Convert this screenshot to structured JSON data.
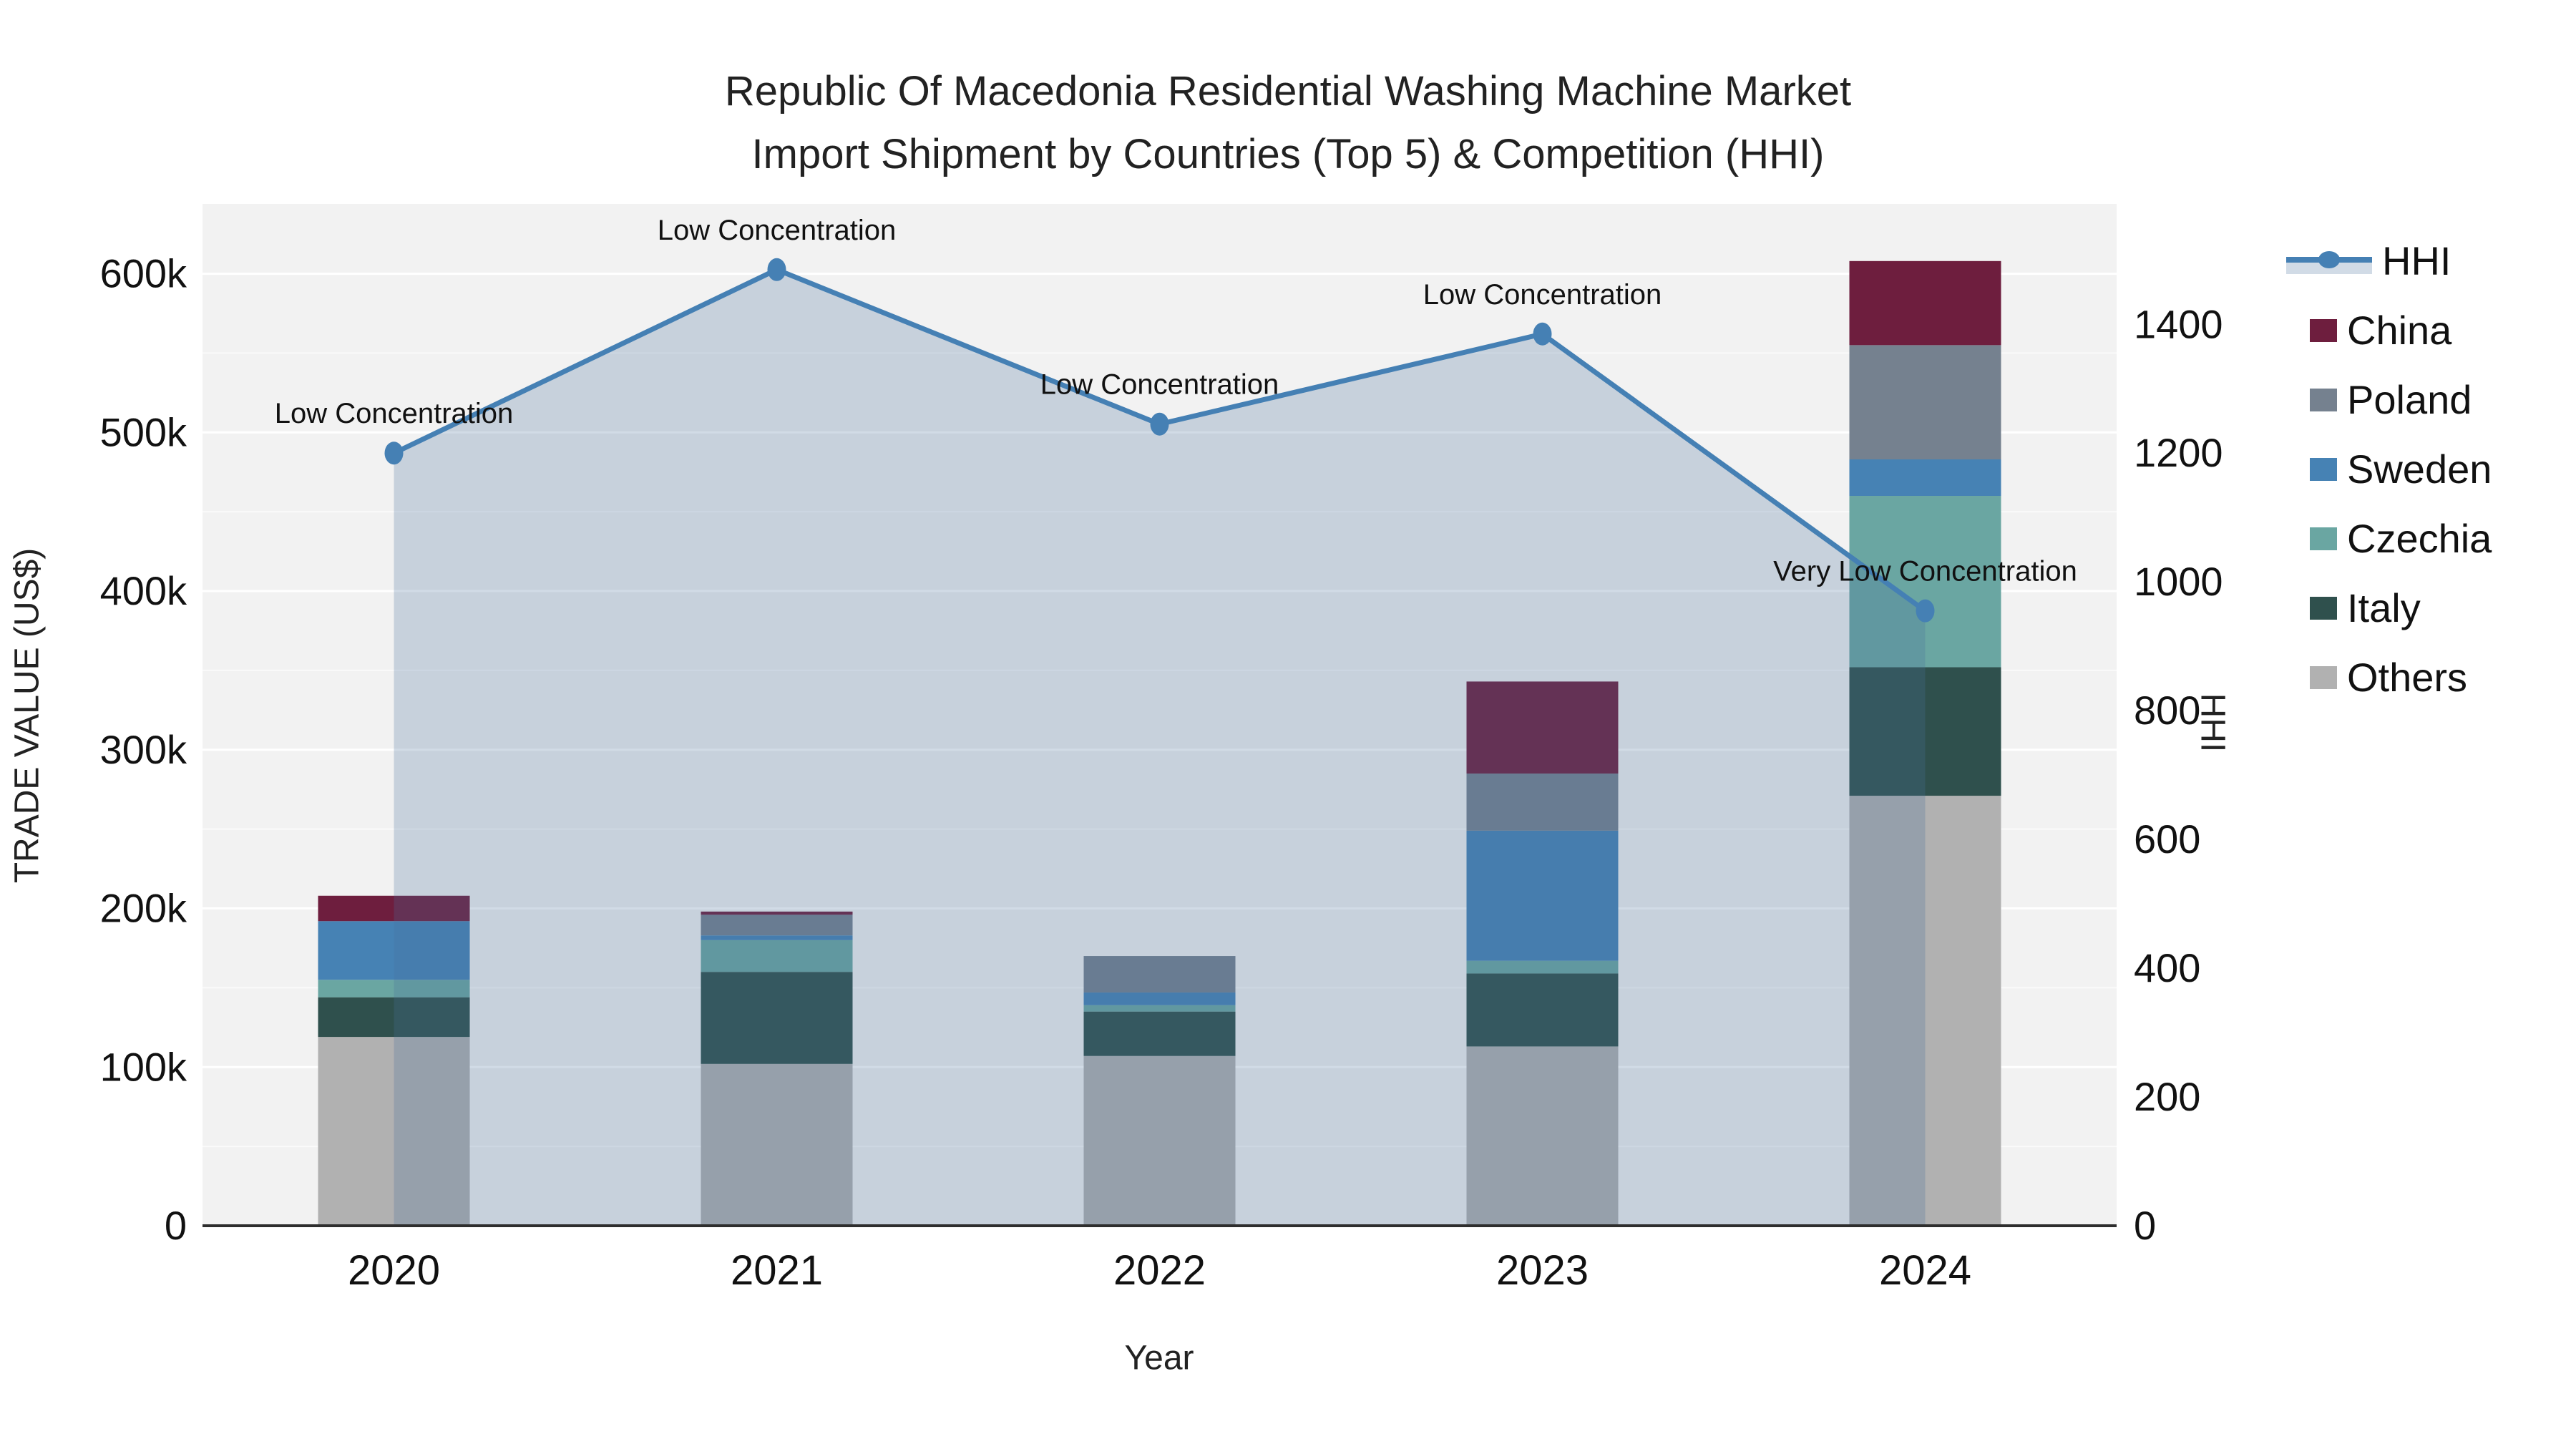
{
  "title": {
    "line1": "Republic Of Macedonia Residential Washing Machine Market",
    "line2": "Import Shipment by Countries (Top 5) & Competition (HHI)"
  },
  "axes": {
    "left_label": "TRADE VALUE (US$)",
    "right_label": "HHI",
    "x_label": "Year",
    "left_ticks": [
      {
        "value": 0,
        "label": "0"
      },
      {
        "value": 100,
        "label": "100k"
      },
      {
        "value": 200,
        "label": "200k"
      },
      {
        "value": 300,
        "label": "300k"
      },
      {
        "value": 400,
        "label": "400k"
      },
      {
        "value": 500,
        "label": "500k"
      },
      {
        "value": 600,
        "label": "600k"
      }
    ],
    "right_ticks": [
      {
        "value": 0,
        "label": "0"
      },
      {
        "value": 200,
        "label": "200"
      },
      {
        "value": 400,
        "label": "400"
      },
      {
        "value": 600,
        "label": "600"
      },
      {
        "value": 800,
        "label": "800"
      },
      {
        "value": 1000,
        "label": "1000"
      },
      {
        "value": 1200,
        "label": "1200"
      },
      {
        "value": 1400,
        "label": "1400"
      }
    ]
  },
  "legend": {
    "items": [
      {
        "label": "HHI",
        "type": "line",
        "color": "#4580b4"
      },
      {
        "label": "China",
        "type": "swatch",
        "color": "#6e1e3e"
      },
      {
        "label": "Poland",
        "type": "swatch",
        "color": "#75818f"
      },
      {
        "label": "Sweden",
        "type": "swatch",
        "color": "#4682b4"
      },
      {
        "label": "Czechia",
        "type": "swatch",
        "color": "#6aa6a2"
      },
      {
        "label": "Italy",
        "type": "swatch",
        "color": "#2f504d"
      },
      {
        "label": "Others",
        "type": "swatch",
        "color": "#b1b1b1"
      }
    ]
  },
  "chart_data": {
    "type": "combo-stacked-bar-plus-area-line",
    "title": "Republic Of Macedonia Residential Washing Machine Market Import Shipment by Countries (Top 5) & Competition (HHI)",
    "xlabel": "Year",
    "ylabel": "TRADE VALUE (US$)",
    "y2label": "HHI",
    "categories": [
      "2020",
      "2021",
      "2022",
      "2023",
      "2024"
    ],
    "units": "thousand US$",
    "ylim": [
      0,
      644
    ],
    "y2lim": [
      0,
      1587
    ],
    "grid": "horizontal, major every 100k, minor every 50k",
    "legend_position": "right",
    "series": [
      {
        "name": "China",
        "color": "#6e1e3e",
        "values": [
          16,
          2,
          0,
          58,
          53
        ]
      },
      {
        "name": "Poland",
        "color": "#75818f",
        "values": [
          0,
          13,
          23,
          36,
          72
        ]
      },
      {
        "name": "Sweden",
        "color": "#4682b4",
        "values": [
          37,
          3,
          8,
          82,
          23
        ]
      },
      {
        "name": "Czechia",
        "color": "#6aa6a2",
        "values": [
          11,
          20,
          4,
          8,
          108
        ]
      },
      {
        "name": "Italy",
        "color": "#2f504d",
        "values": [
          25,
          58,
          28,
          46,
          81
        ]
      },
      {
        "name": "Others",
        "color": "#b1b1b1",
        "values": [
          119,
          102,
          107,
          113,
          271
        ]
      }
    ],
    "stack_totals": [
      208,
      198,
      170,
      343,
      608
    ],
    "hhi_line": {
      "name": "HHI",
      "axis": "right",
      "color": "#4580b4",
      "area_fill": "rgba(71,111,156,0.25)",
      "values": [
        1200,
        1485,
        1245,
        1385,
        955
      ],
      "annotations": [
        "Low Concentration",
        "Low Concentration",
        "Low Concentration",
        "Low Concentration",
        "Very Low Concentration"
      ]
    }
  }
}
